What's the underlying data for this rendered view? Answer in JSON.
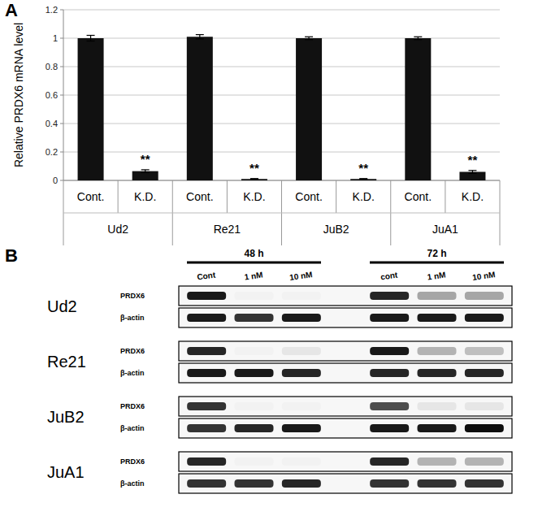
{
  "chart_data": {
    "type": "bar",
    "panel_label": "A",
    "y_label": "Relative PRDX6 mRNA level",
    "categories": [
      "Cont.",
      "K.D.",
      "Cont.",
      "K.D.",
      "Cont.",
      "K.D.",
      "Cont.",
      "K.D."
    ],
    "groups": [
      "Ud2",
      "Re21",
      "JuB2",
      "JuA1"
    ],
    "values": [
      1.0,
      0.065,
      1.01,
      0.01,
      1.0,
      0.01,
      1.0,
      0.06
    ],
    "errors": [
      0.02,
      0.01,
      0.015,
      0.003,
      0.01,
      0.003,
      0.01,
      0.01
    ],
    "significance": [
      null,
      "**",
      null,
      "**",
      null,
      "**",
      null,
      "**"
    ],
    "color": "#111111",
    "ylim": [
      0,
      1.2
    ],
    "yticks": [
      0,
      0.2,
      0.4,
      0.6,
      0.8,
      1,
      1.2
    ],
    "grid": true
  },
  "blot": {
    "panel_label": "B",
    "time_points": [
      {
        "label": "48 h",
        "lanes": [
          "Cont",
          "1 nM",
          "10 nM"
        ]
      },
      {
        "label": "72 h",
        "lanes": [
          "cont",
          "1 nM",
          "10 nM"
        ]
      }
    ],
    "cell_lines": [
      {
        "name": "Ud2",
        "blots": [
          {
            "protein": "PRDX6",
            "intensity": [
              0.9,
              0.05,
              0.05,
              0.85,
              0.35,
              0.35
            ]
          },
          {
            "protein": "β-actin",
            "intensity": [
              0.9,
              0.8,
              0.9,
              0.9,
              0.9,
              0.9
            ]
          }
        ]
      },
      {
        "name": "Re21",
        "blots": [
          {
            "protein": "PRDX6",
            "intensity": [
              0.85,
              0.05,
              0.1,
              0.9,
              0.3,
              0.25
            ]
          },
          {
            "protein": "β-actin",
            "intensity": [
              0.9,
              0.9,
              0.85,
              0.85,
              0.85,
              0.85
            ]
          }
        ]
      },
      {
        "name": "JuB2",
        "blots": [
          {
            "protein": "PRDX6",
            "intensity": [
              0.8,
              0.05,
              0.05,
              0.7,
              0.1,
              0.1
            ]
          },
          {
            "protein": "β-actin",
            "intensity": [
              0.8,
              0.85,
              0.9,
              0.9,
              0.9,
              0.95
            ]
          }
        ]
      },
      {
        "name": "JuA1",
        "blots": [
          {
            "protein": "PRDX6",
            "intensity": [
              0.85,
              0.05,
              0.05,
              0.85,
              0.3,
              0.3
            ]
          },
          {
            "protein": "β-actin",
            "intensity": [
              0.8,
              0.8,
              0.85,
              0.8,
              0.8,
              0.8
            ]
          }
        ]
      }
    ]
  }
}
